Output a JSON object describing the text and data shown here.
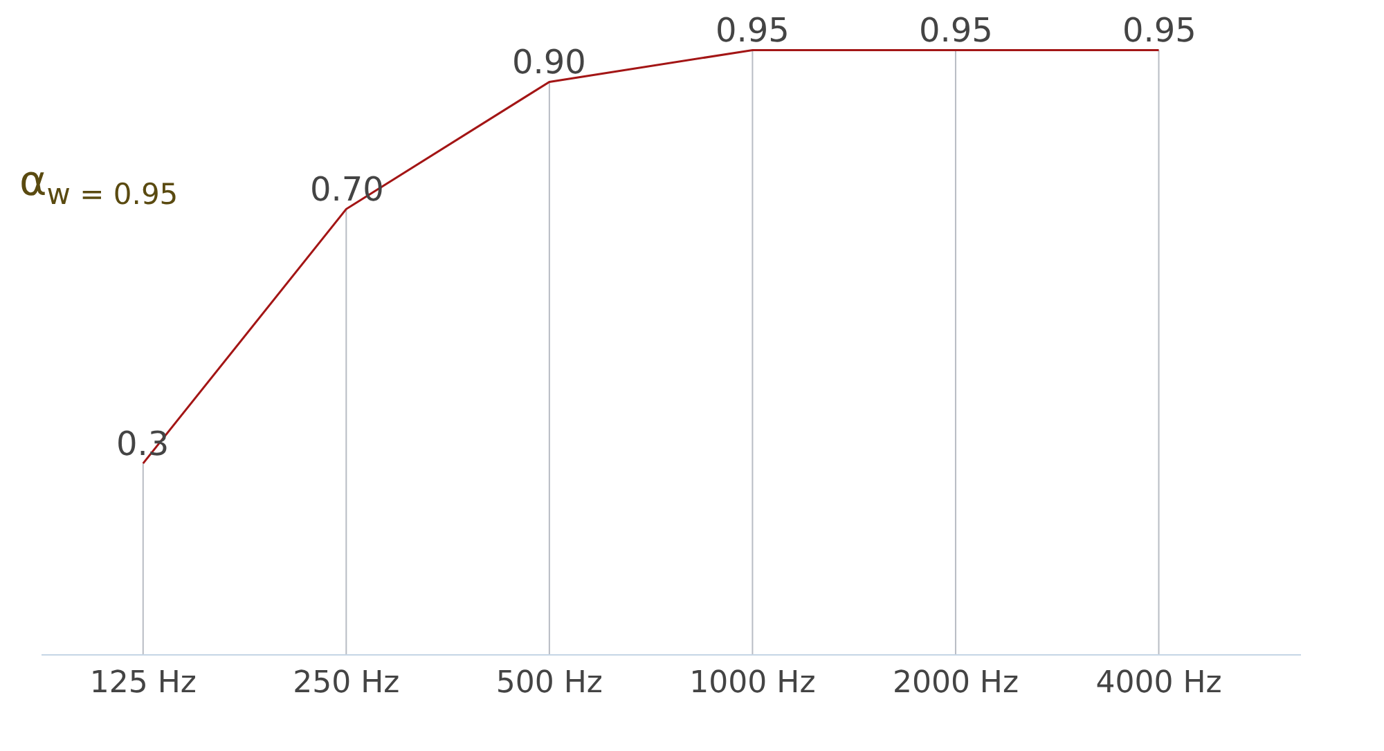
{
  "chart_data": {
    "type": "line",
    "categories": [
      "125 Hz",
      "250 Hz",
      "500 Hz",
      "1000 Hz",
      "2000 Hz",
      "4000 Hz"
    ],
    "series": [
      {
        "color": "#a31515",
        "values": [
          0.3,
          0.7,
          0.9,
          0.95,
          0.95,
          0.95
        ],
        "value_labels": [
          "0.3",
          "0.70",
          "0.90",
          "0.95",
          "0.95",
          "0.95"
        ]
      }
    ],
    "annotations": [
      "α$_{w = 0.95}$"
    ],
    "line_style": "solid",
    "grid": "x",
    "tick_labels": "x"
  }
}
